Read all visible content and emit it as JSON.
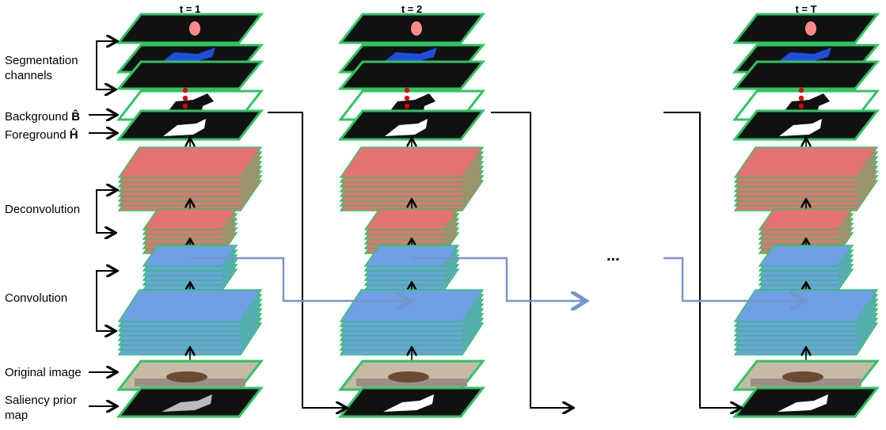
{
  "columns": [
    {
      "title": "t = 1"
    },
    {
      "title": "t = 2"
    },
    {
      "title": "t = T"
    }
  ],
  "ellipsis": "...",
  "labels": {
    "segmentation": "Segmentation\nchannels",
    "background": "Background",
    "background_symbol": "B̂",
    "foreground": "Foreground",
    "foreground_symbol": "Ĥ",
    "deconvolution": "Deconvolution",
    "convolution": "Convolution",
    "original_image": "Original image",
    "saliency": "Saliency prior\nmap"
  },
  "colors": {
    "layer_border": "#2fc462",
    "layer_dark": "#111111",
    "seg_pink": "#ff8a8a",
    "seg_blue": "#1f4de0",
    "deconv_red": "#e57373",
    "conv_blue": "#6fa0e6",
    "recurrent_arrow": "#7596c9",
    "marker_red": "#e00000"
  }
}
